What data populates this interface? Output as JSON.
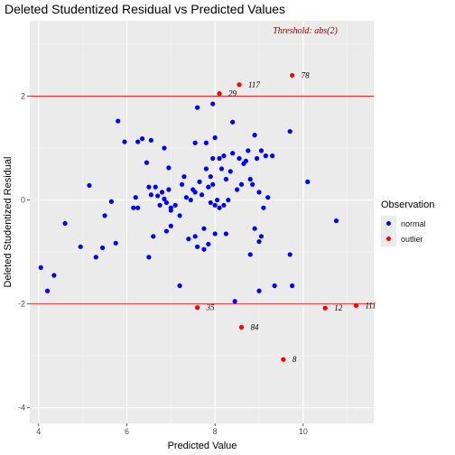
{
  "title": "Deleted Studentized Residual vs Predicted Values",
  "chart_data": {
    "type": "scatter",
    "title": "Deleted Studentized Residual vs Predicted Values",
    "xlabel": "Predicted Value",
    "ylabel": "Deleted Studentized Residual",
    "xlim": [
      3.8,
      11.6
    ],
    "ylim": [
      -4.3,
      3.45
    ],
    "x_ticks": [
      4,
      6,
      8,
      10
    ],
    "y_ticks": [
      -4,
      -2,
      0,
      2
    ],
    "grid": true,
    "threshold_label": "Threshold: abs(2)",
    "threshold_lines": [
      2,
      -2
    ],
    "legend": {
      "title": "Observation",
      "position": "right",
      "entries": [
        {
          "label": "normal",
          "color": "#0000ff"
        },
        {
          "label": "outlier",
          "color": "#ff0000"
        }
      ]
    },
    "series": [
      {
        "name": "normal",
        "color": "#0000ff",
        "points": [
          [
            4.05,
            -1.3
          ],
          [
            4.2,
            -1.75
          ],
          [
            4.35,
            -1.45
          ],
          [
            4.6,
            -0.45
          ],
          [
            4.95,
            -0.9
          ],
          [
            5.15,
            0.28
          ],
          [
            5.3,
            -1.1
          ],
          [
            5.45,
            -0.92
          ],
          [
            5.5,
            -0.3
          ],
          [
            5.65,
            -0.03
          ],
          [
            5.75,
            -0.83
          ],
          [
            5.8,
            1.52
          ],
          [
            5.95,
            1.12
          ],
          [
            6.15,
            -0.15
          ],
          [
            6.2,
            0.05
          ],
          [
            6.25,
            -0.15
          ],
          [
            6.25,
            1.12
          ],
          [
            6.35,
            1.18
          ],
          [
            6.45,
            0.72
          ],
          [
            6.5,
            0.25
          ],
          [
            6.5,
            -1.1
          ],
          [
            6.55,
            1.15
          ],
          [
            6.55,
            0.1
          ],
          [
            6.6,
            -0.7
          ],
          [
            6.65,
            0.25
          ],
          [
            6.7,
            0.08
          ],
          [
            6.75,
            -0.1
          ],
          [
            6.8,
            0.15
          ],
          [
            6.85,
            0.02
          ],
          [
            6.85,
            1.0
          ],
          [
            6.9,
            -0.05
          ],
          [
            6.9,
            -0.6
          ],
          [
            6.95,
            0.2
          ],
          [
            6.95,
            0.62
          ],
          [
            7.0,
            -0.2
          ],
          [
            7.0,
            -0.15
          ],
          [
            7.0,
            -0.5
          ],
          [
            7.1,
            -0.1
          ],
          [
            7.2,
            -0.3
          ],
          [
            7.2,
            -1.65
          ],
          [
            7.25,
            0.3
          ],
          [
            7.3,
            0.45
          ],
          [
            7.35,
            0.05
          ],
          [
            7.4,
            -0.75
          ],
          [
            7.45,
            0.0
          ],
          [
            7.5,
            0.2
          ],
          [
            7.55,
            1.1
          ],
          [
            7.55,
            0.15
          ],
          [
            7.55,
            -0.7
          ],
          [
            7.6,
            1.78
          ],
          [
            7.6,
            -0.9
          ],
          [
            7.65,
            0.35
          ],
          [
            7.7,
            0.1
          ],
          [
            7.75,
            -0.95
          ],
          [
            7.75,
            -0.55
          ],
          [
            7.8,
            1.1
          ],
          [
            7.8,
            0.6
          ],
          [
            7.85,
            0.25
          ],
          [
            7.85,
            -0.85
          ],
          [
            7.9,
            0.45
          ],
          [
            7.9,
            -0.05
          ],
          [
            7.95,
            1.85
          ],
          [
            7.95,
            0.8
          ],
          [
            7.95,
            0.3
          ],
          [
            8.0,
            1.2
          ],
          [
            8.0,
            -0.1
          ],
          [
            8.0,
            -0.65
          ],
          [
            8.05,
            0.0
          ],
          [
            8.1,
            0.8
          ],
          [
            8.1,
            -0.15
          ],
          [
            8.15,
            0.6
          ],
          [
            8.2,
            0.85
          ],
          [
            8.2,
            -0.1
          ],
          [
            8.25,
            0.4
          ],
          [
            8.25,
            -0.65
          ],
          [
            8.3,
            0.0
          ],
          [
            8.35,
            0.55
          ],
          [
            8.4,
            0.9
          ],
          [
            8.4,
            1.5
          ],
          [
            8.45,
            -1.95
          ],
          [
            8.5,
            0.2
          ],
          [
            8.55,
            0.8
          ],
          [
            8.6,
            0.3
          ],
          [
            8.65,
            0.7
          ],
          [
            8.7,
            0.75
          ],
          [
            8.75,
            0.95
          ],
          [
            8.8,
            0.4
          ],
          [
            8.8,
            -1.05
          ],
          [
            8.85,
            0.3
          ],
          [
            8.9,
            -0.55
          ],
          [
            8.9,
            1.25
          ],
          [
            8.95,
            0.8
          ],
          [
            9.0,
            -1.75
          ],
          [
            9.0,
            0.15
          ],
          [
            9.0,
            -0.8
          ],
          [
            9.05,
            0.95
          ],
          [
            9.05,
            -0.7
          ],
          [
            9.1,
            -0.15
          ],
          [
            9.15,
            0.85
          ],
          [
            9.2,
            0.05
          ],
          [
            9.3,
            0.85
          ],
          [
            9.35,
            -1.65
          ],
          [
            9.7,
            -1.05
          ],
          [
            9.7,
            1.32
          ],
          [
            9.75,
            -1.65
          ],
          [
            10.1,
            0.35
          ],
          [
            10.75,
            -0.4
          ]
        ]
      },
      {
        "name": "outlier",
        "color": "#ff0000",
        "points": [
          [
            8.1,
            2.05
          ],
          [
            8.55,
            2.22
          ],
          [
            9.75,
            2.4
          ],
          [
            7.6,
            -2.07
          ],
          [
            8.6,
            -2.45
          ],
          [
            9.55,
            -3.07
          ],
          [
            10.5,
            -2.08
          ],
          [
            11.2,
            -2.03
          ]
        ],
        "labels": [
          "29",
          "117",
          "78",
          "35",
          "84",
          "8",
          "12",
          "111"
        ]
      }
    ]
  }
}
